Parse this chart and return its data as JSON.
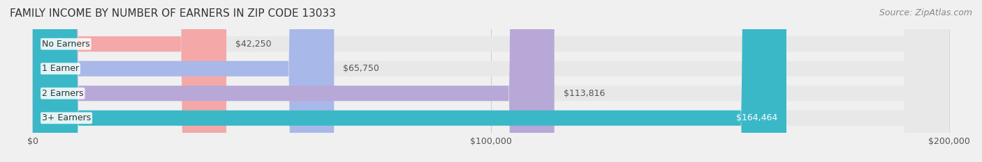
{
  "title": "FAMILY INCOME BY NUMBER OF EARNERS IN ZIP CODE 13033",
  "source": "Source: ZipAtlas.com",
  "categories": [
    "No Earners",
    "1 Earner",
    "2 Earners",
    "3+ Earners"
  ],
  "values": [
    42250,
    65750,
    113816,
    164464
  ],
  "bar_colors": [
    "#f4a8a8",
    "#a8b8e8",
    "#b8a8d8",
    "#3ab8c8"
  ],
  "label_colors": [
    "#555555",
    "#555555",
    "#555555",
    "#ffffff"
  ],
  "xlim": [
    0,
    200000
  ],
  "xtick_values": [
    0,
    100000,
    200000
  ],
  "xtick_labels": [
    "$0",
    "$100,000",
    "$200,000"
  ],
  "background_color": "#f0f0f0",
  "bar_bg_color": "#e8e8e8",
  "title_fontsize": 11,
  "source_fontsize": 9,
  "label_fontsize": 9,
  "category_fontsize": 9,
  "value_label_fontsize": 9
}
